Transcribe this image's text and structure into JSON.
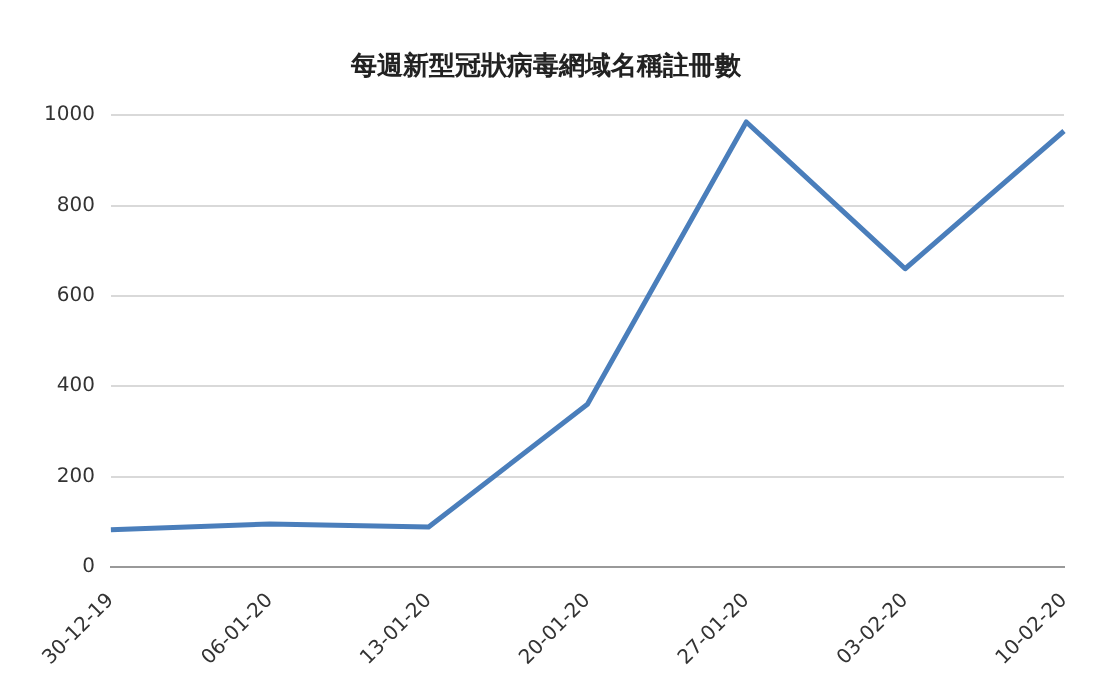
{
  "chart_data": {
    "type": "line",
    "title": "每週新型冠狀病毒網域名稱註冊數",
    "categories": [
      "30-12-19",
      "06-01-20",
      "13-01-20",
      "20-01-20",
      "27-01-20",
      "03-02-20",
      "10-02-20"
    ],
    "series": [
      {
        "color": "#4a7ebb",
        "values": [
          82,
          95,
          88,
          360,
          985,
          660,
          965
        ]
      }
    ],
    "ylim": [
      0,
      1000
    ],
    "yticks": [
      0,
      200,
      400,
      600,
      800,
      1000
    ],
    "grid": "y",
    "legend": false,
    "marker": "none",
    "line_style": "solid"
  }
}
